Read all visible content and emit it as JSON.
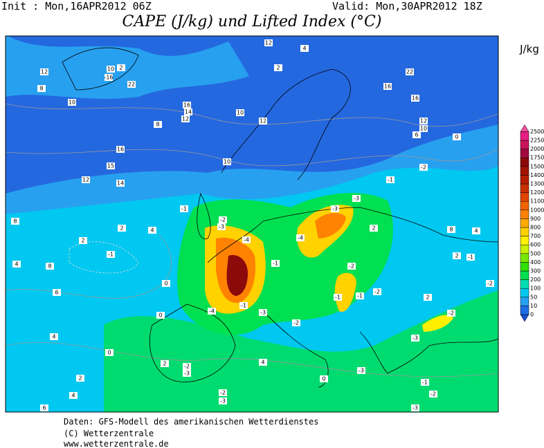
{
  "header": {
    "init": "Init : Mon,16APR2012 06Z",
    "valid": "Valid: Mon,30APR2012 18Z",
    "title": "CAPE (J/kg) und Lifted Index (°C)"
  },
  "colorbar": {
    "unit": "J/kg",
    "levels": [
      0,
      10,
      50,
      100,
      200,
      300,
      400,
      500,
      600,
      700,
      800,
      900,
      1000,
      1100,
      1200,
      1300,
      1400,
      1500,
      1750,
      2000,
      2250,
      2500
    ],
    "colors": [
      "#1e6ee6",
      "#28a0f0",
      "#00c8f0",
      "#00dcb4",
      "#00e050",
      "#30e000",
      "#78e600",
      "#c8f000",
      "#fff000",
      "#ffd200",
      "#ffaa00",
      "#ff8200",
      "#f06400",
      "#e04600",
      "#c83200",
      "#b41e00",
      "#a01400",
      "#8c0a0a",
      "#a00a3c",
      "#c8145a",
      "#e61e82",
      "#f050a0"
    ]
  },
  "contour_labels": [
    12,
    8,
    10,
    10,
    -16,
    22,
    2,
    16,
    14,
    12,
    8,
    10,
    12,
    12,
    4,
    2,
    22,
    16,
    16,
    12,
    10,
    6,
    16,
    15,
    12,
    14,
    10,
    8,
    2,
    -1,
    4,
    8,
    6,
    2,
    4,
    -1,
    -2,
    -3,
    -4,
    -4,
    -4,
    -3,
    -3,
    -1,
    -2,
    0,
    -1,
    -2,
    -2,
    -3,
    -2,
    -1,
    -1,
    -2,
    -1,
    -3,
    -1,
    -2,
    -2,
    -3,
    -2,
    -3,
    -3,
    -1,
    -2,
    0,
    -3,
    4,
    2,
    2,
    4,
    6,
    4,
    0,
    0,
    0,
    2,
    8,
    4,
    2,
    2
  ],
  "footer": [
    "Daten: GFS-Modell des amerikanischen Wetterdienstes",
    "(C) Wetterzentrale",
    "www.wetterzentrale.de"
  ]
}
